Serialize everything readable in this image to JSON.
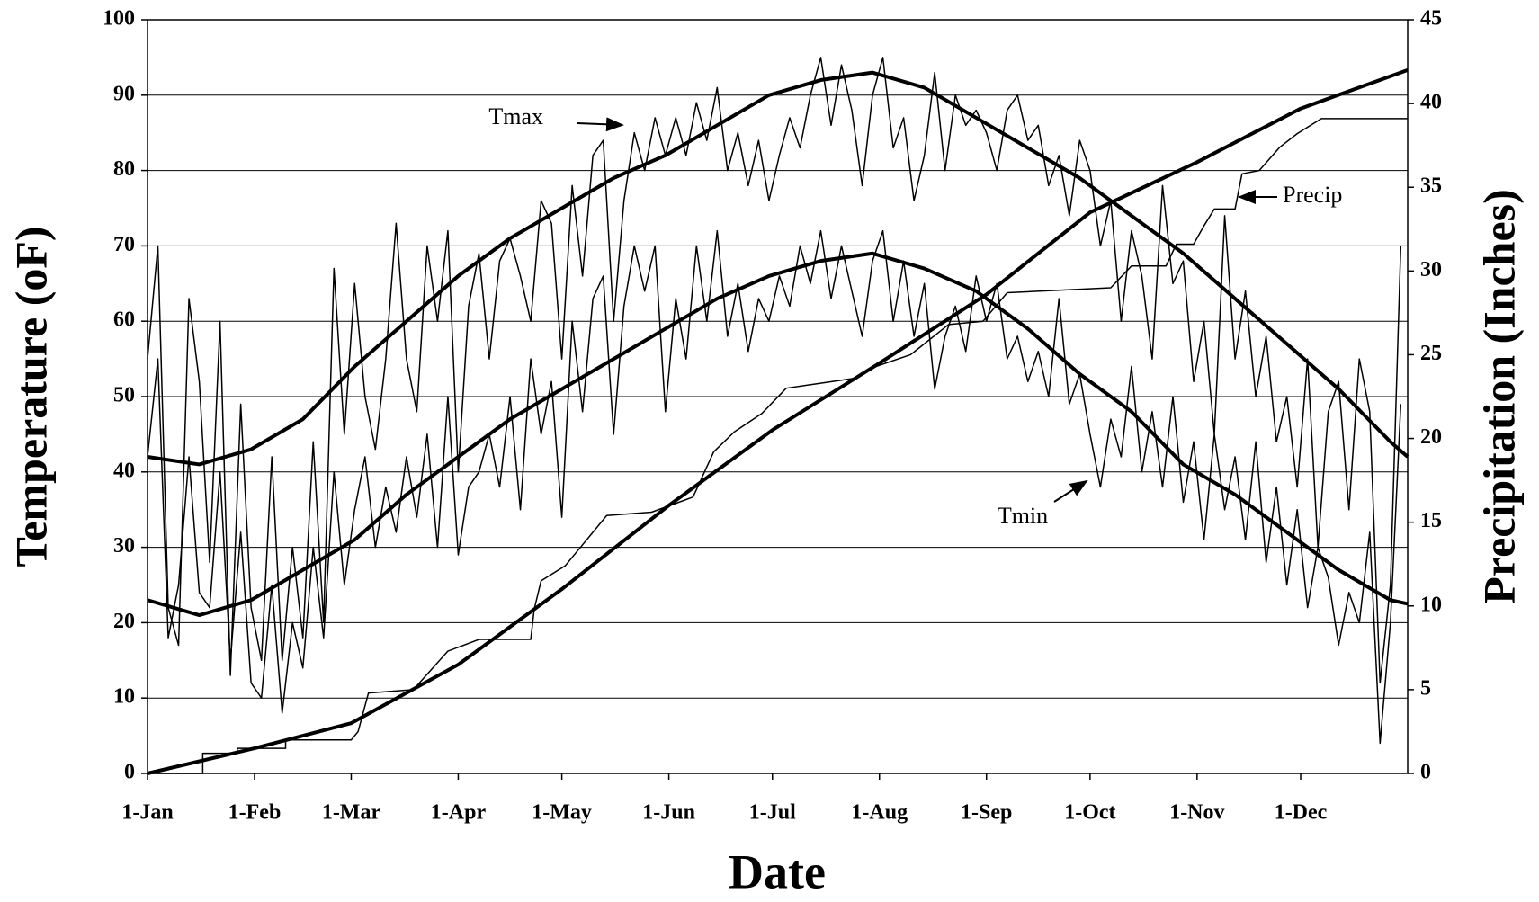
{
  "chart_data": {
    "type": "line",
    "xlabel": "Date",
    "ylabel": "Temperature (oF)",
    "y2label": "Precipitation (Inches)",
    "xlim": [
      0,
      365
    ],
    "xticks": [
      {
        "value": 0,
        "label": "1-Jan"
      },
      {
        "value": 31,
        "label": "1-Feb"
      },
      {
        "value": 59,
        "label": "1-Mar"
      },
      {
        "value": 90,
        "label": "1-Apr"
      },
      {
        "value": 120,
        "label": "1-May"
      },
      {
        "value": 151,
        "label": "1-Jun"
      },
      {
        "value": 181,
        "label": "1-Jul"
      },
      {
        "value": 212,
        "label": "1-Aug"
      },
      {
        "value": 243,
        "label": "1-Sep"
      },
      {
        "value": 273,
        "label": "1-Oct"
      },
      {
        "value": 304,
        "label": "1-Nov"
      },
      {
        "value": 334,
        "label": "1-Dec"
      }
    ],
    "ylim": [
      0,
      100
    ],
    "yticks": [
      0,
      10,
      20,
      30,
      40,
      50,
      60,
      70,
      80,
      90,
      100
    ],
    "y2lim": [
      0,
      45
    ],
    "y2ticks": [
      0,
      5,
      10,
      15,
      20,
      25,
      30,
      35,
      40,
      45
    ],
    "grid": true,
    "annotations": [
      {
        "text": "Tmax"
      },
      {
        "text": "Tmin"
      },
      {
        "text": "Precip"
      }
    ],
    "series": [
      {
        "color": "#000000",
        "width": 1.5,
        "x": [
          0,
          3,
          6,
          9,
          12,
          15,
          18,
          21,
          24,
          27,
          30,
          33,
          36,
          39,
          42,
          45,
          48,
          51,
          54,
          57,
          60,
          63,
          66,
          69,
          72,
          75,
          78,
          81,
          84,
          87,
          90,
          93,
          96,
          99,
          102,
          105,
          108,
          111,
          114,
          117,
          120,
          123,
          126,
          129,
          132,
          135,
          138,
          141,
          144,
          147,
          150,
          153,
          156,
          159,
          162,
          165,
          168,
          171,
          174,
          177,
          180,
          183,
          186,
          189,
          192,
          195,
          198,
          201,
          204,
          207,
          210,
          213,
          216,
          219,
          222,
          225,
          228,
          231,
          234,
          237,
          240,
          243,
          246,
          249,
          252,
          255,
          258,
          261,
          264,
          267,
          270,
          273,
          276,
          279,
          282,
          285,
          288,
          291,
          294,
          297,
          300,
          303,
          306,
          309,
          312,
          315,
          318,
          321,
          324,
          327,
          330,
          333,
          336,
          339,
          342,
          345,
          348,
          351,
          354,
          357,
          360,
          363
        ],
        "values": [
          55,
          70,
          22,
          17,
          63,
          52,
          28,
          60,
          13,
          49,
          22,
          15,
          42,
          15,
          30,
          18,
          44,
          20,
          67,
          45,
          65,
          50,
          43,
          55,
          73,
          55,
          48,
          70,
          60,
          72,
          40,
          62,
          69,
          55,
          68,
          71,
          66,
          60,
          76,
          73,
          55,
          78,
          66,
          82,
          84,
          60,
          76,
          85,
          80,
          87,
          82,
          87,
          82,
          89,
          84,
          91,
          80,
          85,
          78,
          84,
          76,
          82,
          87,
          83,
          90,
          95,
          86,
          94,
          88,
          78,
          90,
          95,
          83,
          87,
          76,
          82,
          93,
          80,
          90,
          86,
          88,
          85,
          80,
          88,
          90,
          84,
          86,
          78,
          82,
          74,
          84,
          80,
          70,
          76,
          60,
          72,
          66,
          55,
          78,
          65,
          68,
          52,
          60,
          45,
          74,
          55,
          64,
          50,
          58,
          44,
          50,
          38,
          55,
          30,
          48,
          52,
          35,
          55,
          48,
          12,
          25,
          70
        ]
      },
      {
        "color": "#000000",
        "width": 1.5,
        "x": [
          0,
          3,
          6,
          9,
          12,
          15,
          18,
          21,
          24,
          27,
          30,
          33,
          36,
          39,
          42,
          45,
          48,
          51,
          54,
          57,
          60,
          63,
          66,
          69,
          72,
          75,
          78,
          81,
          84,
          87,
          90,
          93,
          96,
          99,
          102,
          105,
          108,
          111,
          114,
          117,
          120,
          123,
          126,
          129,
          132,
          135,
          138,
          141,
          144,
          147,
          150,
          153,
          156,
          159,
          162,
          165,
          168,
          171,
          174,
          177,
          180,
          183,
          186,
          189,
          192,
          195,
          198,
          201,
          204,
          207,
          210,
          213,
          216,
          219,
          222,
          225,
          228,
          231,
          234,
          237,
          240,
          243,
          246,
          249,
          252,
          255,
          258,
          261,
          264,
          267,
          270,
          273,
          276,
          279,
          282,
          285,
          288,
          291,
          294,
          297,
          300,
          303,
          306,
          309,
          312,
          315,
          318,
          321,
          324,
          327,
          330,
          333,
          336,
          339,
          342,
          345,
          348,
          351,
          354,
          357,
          360,
          363
        ],
        "values": [
          42,
          55,
          18,
          25,
          42,
          24,
          22,
          40,
          15,
          32,
          12,
          10,
          25,
          8,
          20,
          14,
          30,
          18,
          40,
          25,
          35,
          42,
          30,
          38,
          32,
          42,
          34,
          45,
          30,
          50,
          29,
          38,
          40,
          45,
          38,
          50,
          35,
          55,
          45,
          52,
          34,
          60,
          48,
          63,
          66,
          45,
          62,
          70,
          64,
          70,
          48,
          63,
          55,
          70,
          60,
          72,
          58,
          65,
          56,
          63,
          60,
          66,
          62,
          70,
          65,
          72,
          63,
          70,
          64,
          58,
          68,
          72,
          60,
          68,
          58,
          65,
          51,
          58,
          62,
          56,
          66,
          60,
          65,
          55,
          58,
          52,
          56,
          50,
          63,
          49,
          53,
          45,
          38,
          47,
          42,
          54,
          40,
          48,
          38,
          50,
          36,
          44,
          31,
          45,
          35,
          42,
          31,
          44,
          28,
          38,
          25,
          35,
          22,
          30,
          26,
          17,
          24,
          20,
          32,
          4,
          20,
          49
        ]
      },
      {
        "color": "#000000",
        "width": 4,
        "x": [
          0,
          15,
          30,
          45,
          60,
          75,
          90,
          105,
          120,
          135,
          150,
          165,
          180,
          195,
          210,
          225,
          240,
          255,
          270,
          285,
          300,
          315,
          330,
          345,
          360,
          365
        ],
        "values": [
          42,
          41,
          43,
          47,
          54,
          60,
          66,
          71,
          75,
          79,
          82,
          86,
          90,
          92,
          93,
          91,
          87,
          83,
          79,
          74,
          69,
          63,
          57,
          51,
          44,
          42
        ]
      },
      {
        "color": "#000000",
        "width": 4,
        "x": [
          0,
          15,
          30,
          45,
          60,
          75,
          90,
          105,
          120,
          135,
          150,
          165,
          180,
          195,
          210,
          225,
          240,
          255,
          270,
          285,
          300,
          315,
          330,
          345,
          360,
          365
        ],
        "values": [
          23,
          21,
          23,
          27,
          31,
          37,
          42,
          47,
          51,
          55,
          59,
          63,
          66,
          68,
          69,
          67,
          64,
          59,
          53,
          48,
          41,
          37,
          32,
          27,
          23,
          22.5
        ]
      },
      {
        "color": "#000000",
        "width": 1.5,
        "axis": "y2",
        "x": [
          0,
          16,
          16,
          26,
          26,
          40,
          40,
          59,
          61,
          64,
          77,
          87,
          96,
          111,
          112,
          114,
          121,
          133,
          146,
          158,
          164,
          170,
          178,
          185,
          195,
          205,
          211,
          221,
          232,
          242,
          249,
          279,
          285,
          295,
          298,
          303,
          306,
          309,
          315,
          317,
          322,
          328,
          333,
          340,
          365
        ],
        "values": [
          0,
          0,
          1.2,
          1.2,
          1.5,
          1.5,
          2.0,
          2.0,
          2.5,
          4.8,
          5.0,
          7.3,
          8,
          8,
          9.8,
          11.5,
          12.4,
          15.4,
          15.6,
          16.5,
          19.2,
          20.4,
          21.5,
          23,
          23.3,
          23.6,
          24.3,
          25,
          26.8,
          27,
          28.7,
          29,
          30.3,
          30.3,
          31.6,
          31.6,
          32.7,
          33.7,
          33.7,
          35.8,
          36,
          37.4,
          38.2,
          39.1,
          39.1
        ]
      },
      {
        "color": "#000000",
        "width": 4,
        "axis": "y2",
        "x": [
          0,
          31,
          59,
          90,
          120,
          151,
          181,
          212,
          243,
          273,
          304,
          334,
          365
        ],
        "values": [
          0,
          1.5,
          3,
          6.5,
          11,
          16,
          20.5,
          24.5,
          28.6,
          33.5,
          36.5,
          39.7,
          42
        ]
      }
    ]
  }
}
